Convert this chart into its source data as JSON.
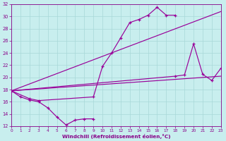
{
  "xlabel": "Windchill (Refroidissement éolien,°C)",
  "bg_color": "#c8eeee",
  "grid_color": "#a8d8d8",
  "line_color": "#990099",
  "xlim": [
    0,
    23
  ],
  "ylim": [
    12,
    32
  ],
  "xticks": [
    0,
    1,
    2,
    3,
    4,
    5,
    6,
    7,
    8,
    9,
    10,
    11,
    12,
    13,
    14,
    15,
    16,
    17,
    18,
    19,
    20,
    21,
    22,
    23
  ],
  "yticks": [
    12,
    14,
    16,
    18,
    20,
    22,
    24,
    26,
    28,
    30,
    32
  ],
  "line1_x": [
    0,
    1,
    2,
    3,
    4,
    5,
    6,
    7,
    8,
    9
  ],
  "line1_y": [
    17.8,
    16.8,
    16.3,
    16.0,
    15.0,
    13.5,
    12.2,
    13.0,
    13.2,
    13.2
  ],
  "line2_x": [
    0,
    2,
    3,
    9,
    10,
    11,
    12,
    13,
    14,
    15,
    16,
    17,
    18
  ],
  "line2_y": [
    17.8,
    16.5,
    16.2,
    16.8,
    21.8,
    24.0,
    26.5,
    29.0,
    29.5,
    30.2,
    31.5,
    30.2,
    30.2
  ],
  "line3_x": [
    0,
    18,
    19,
    20,
    21,
    22,
    23
  ],
  "line3_y": [
    17.8,
    20.2,
    20.4,
    25.5,
    20.5,
    19.5,
    21.5
  ],
  "trend1_x": [
    0,
    23
  ],
  "trend1_y": [
    17.8,
    20.2
  ],
  "trend2_x": [
    0,
    23
  ],
  "trend2_y": [
    17.8,
    30.8
  ]
}
